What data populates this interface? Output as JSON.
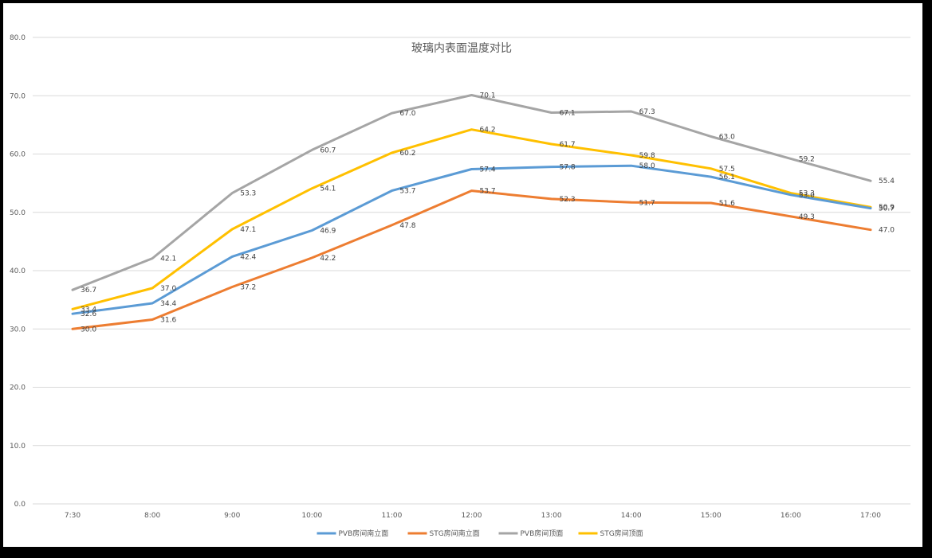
{
  "chart_data": {
    "type": "line",
    "title": "玻璃内表面温度对比",
    "xlabel": "",
    "ylabel": "",
    "categories": [
      "7:30",
      "8:00",
      "9:00",
      "10:00",
      "11:00",
      "12:00",
      "13:00",
      "14:00",
      "15:00",
      "16:00",
      "17:00"
    ],
    "ylim": [
      0,
      80
    ],
    "yticks": [
      "0.0",
      "10.0",
      "20.0",
      "30.0",
      "40.0",
      "50.0",
      "60.0",
      "70.0",
      "80.0"
    ],
    "grid": true,
    "legend_position": "bottom",
    "series": [
      {
        "name": "PVB房间南立面",
        "color": "#5B9BD5",
        "values": [
          32.6,
          34.4,
          42.4,
          46.9,
          53.7,
          57.4,
          57.8,
          58.0,
          56.1,
          53.0,
          50.7
        ],
        "labels": [
          "32.6",
          "34.4",
          "42.4",
          "46.9",
          "53.7",
          "57.4",
          "57.8",
          "58.0",
          "56.1",
          "53.0",
          "50.7"
        ]
      },
      {
        "name": "STG房间南立面",
        "color": "#ED7D31",
        "values": [
          30.0,
          31.6,
          37.2,
          42.2,
          47.8,
          53.7,
          52.3,
          51.7,
          51.6,
          49.3,
          47.0
        ],
        "labels": [
          "30.0",
          "31.6",
          "37.2",
          "42.2",
          "47.8",
          "53.7",
          "52.3",
          "51.7",
          "51.6",
          "49.3",
          "47.0"
        ]
      },
      {
        "name": "PVB房间顶面",
        "color": "#A5A5A5",
        "values": [
          36.7,
          42.1,
          53.3,
          60.7,
          67.0,
          70.1,
          67.1,
          67.3,
          63.0,
          59.2,
          55.4
        ],
        "labels": [
          "36.7",
          "42.1",
          "53.3",
          "60.7",
          "67.0",
          "70.1",
          "67.1",
          "67.3",
          "63.0",
          "59.2",
          "55.4"
        ]
      },
      {
        "name": "STG房间顶面",
        "color": "#FFC000",
        "values": [
          33.4,
          37.0,
          47.1,
          54.1,
          60.2,
          64.2,
          61.7,
          59.8,
          57.5,
          53.3,
          50.9
        ],
        "labels": [
          "33.4",
          "37.0",
          "47.1",
          "54.1",
          "60.2",
          "64.2",
          "61.7",
          "59.8",
          "57.5",
          "53.3",
          "50.9"
        ]
      }
    ]
  }
}
